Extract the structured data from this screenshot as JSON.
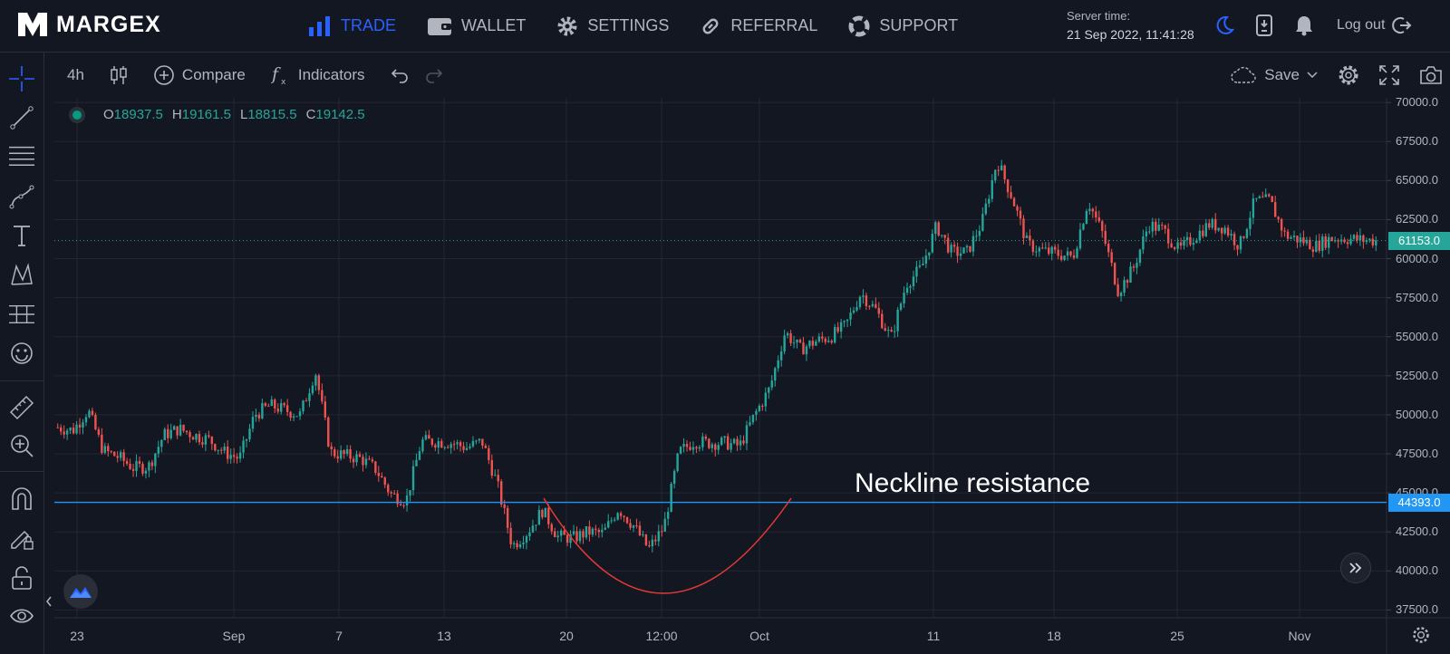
{
  "brand": {
    "name": "MARGEX"
  },
  "nav": [
    {
      "label": "TRADE",
      "icon": "bar-chart-icon",
      "active": true
    },
    {
      "label": "WALLET",
      "icon": "wallet-icon"
    },
    {
      "label": "SETTINGS",
      "icon": "gear-icon"
    },
    {
      "label": "REFERRAL",
      "icon": "link-icon"
    },
    {
      "label": "SUPPORT",
      "icon": "lifebuoy-icon"
    }
  ],
  "server": {
    "label": "Server time:",
    "value": "21 Sep 2022, 11:41:28"
  },
  "header_icons": [
    "moon-icon",
    "mobile-download-icon",
    "bell-icon"
  ],
  "logout": {
    "label": "Log out"
  },
  "toolbar": {
    "interval": "4h",
    "compare": "Compare",
    "indicators": "Indicators",
    "save": "Save"
  },
  "left_tools": [
    "crosshair-icon",
    "trend-line-icon",
    "horizontal-lines-icon",
    "path-icon",
    "text-icon",
    "pattern-icon",
    "measure-lines-icon",
    "emoji-icon",
    "ruler-icon",
    "zoom-in-icon",
    "magnet-icon",
    "lock-drawing-icon",
    "unlock-icon",
    "eye-icon"
  ],
  "ohlc": {
    "o_label": "O",
    "o": "18937.5",
    "h_label": "H",
    "h": "19161.5",
    "l_label": "L",
    "l": "18815.5",
    "c_label": "C",
    "c": "19142.5"
  },
  "annotation": "Neckline resistance",
  "badges": {
    "last_price": "61153.0",
    "neckline": "44393.0"
  },
  "colors": {
    "up": "#26a69a",
    "down": "#ef5350",
    "accent": "#2962ff",
    "neckline": "#2196f3",
    "curve": "#e53935",
    "background": "#131722"
  },
  "chart_data": {
    "type": "candlestick",
    "x_ticks": [
      "23",
      "Sep",
      "7",
      "13",
      "20",
      "12:00",
      "Oct",
      "11",
      "18",
      "25",
      "Nov"
    ],
    "y_ticks": [
      "70000.0",
      "67500.0",
      "65000.0",
      "62500.0",
      "60000.0",
      "57500.0",
      "55000.0",
      "52500.0",
      "50000.0",
      "47500.0",
      "45000.0",
      "42500.0",
      "40000.0",
      "37500.0"
    ],
    "ylim": [
      37000,
      70300
    ],
    "last_price": 61153.0,
    "neckline": 44393.0,
    "path": [
      49200,
      49000,
      50300,
      47700,
      47300,
      46600,
      46700,
      48700,
      49100,
      48700,
      48400,
      47600,
      47200,
      50000,
      50600,
      50300,
      50000,
      52800,
      47600,
      47400,
      47200,
      46500,
      44900,
      44500,
      48300,
      48300,
      48200,
      47900,
      48300,
      45600,
      41600,
      42500,
      43900,
      42200,
      42100,
      42500,
      42400,
      44000,
      42900,
      41400,
      42800,
      47600,
      48300,
      48200,
      48200,
      48000,
      50000,
      51700,
      55300,
      54200,
      54700,
      55000,
      55700,
      57800,
      56700,
      54900,
      58400,
      59400,
      62100,
      60400,
      60400,
      62300,
      66300,
      63900,
      60900,
      60500,
      60300,
      60100,
      63700,
      61500,
      57900,
      59400,
      62200,
      61800,
      60500,
      61400,
      62200,
      62000,
      60800,
      63700,
      63700,
      61500,
      61200,
      60800,
      61300,
      61300,
      61200,
      61153
    ]
  }
}
